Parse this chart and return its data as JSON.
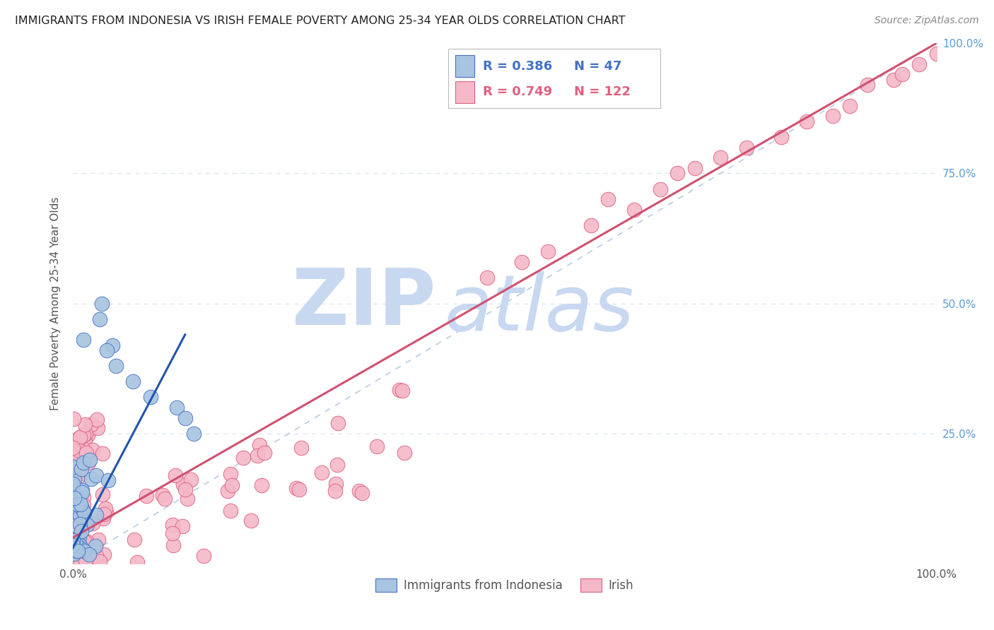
{
  "title": "IMMIGRANTS FROM INDONESIA VS IRISH FEMALE POVERTY AMONG 25-34 YEAR OLDS CORRELATION CHART",
  "source": "Source: ZipAtlas.com",
  "ylabel": "Female Poverty Among 25-34 Year Olds",
  "legend_blue_r": "R = 0.386",
  "legend_blue_n": "N = 47",
  "legend_pink_r": "R = 0.749",
  "legend_pink_n": "N = 122",
  "legend_blue_label": "Immigrants from Indonesia",
  "legend_pink_label": "Irish",
  "blue_fill": "#a8c4e0",
  "pink_fill": "#f4b8c8",
  "blue_edge": "#4472c4",
  "pink_edge": "#e06080",
  "watermark_zip": "ZIP",
  "watermark_atlas": "atlas",
  "watermark_color_zip": "#c8d8f0",
  "watermark_color_atlas": "#c8d8f0",
  "background_color": "#ffffff",
  "grid_color": "#d8e4f0",
  "diag_color": "#b8cce4",
  "ytick_color": "#5b9bd5",
  "title_color": "#222222",
  "source_color": "#888888",
  "indo_blue_line": "#2255aa",
  "irish_pink_line": "#d05070"
}
